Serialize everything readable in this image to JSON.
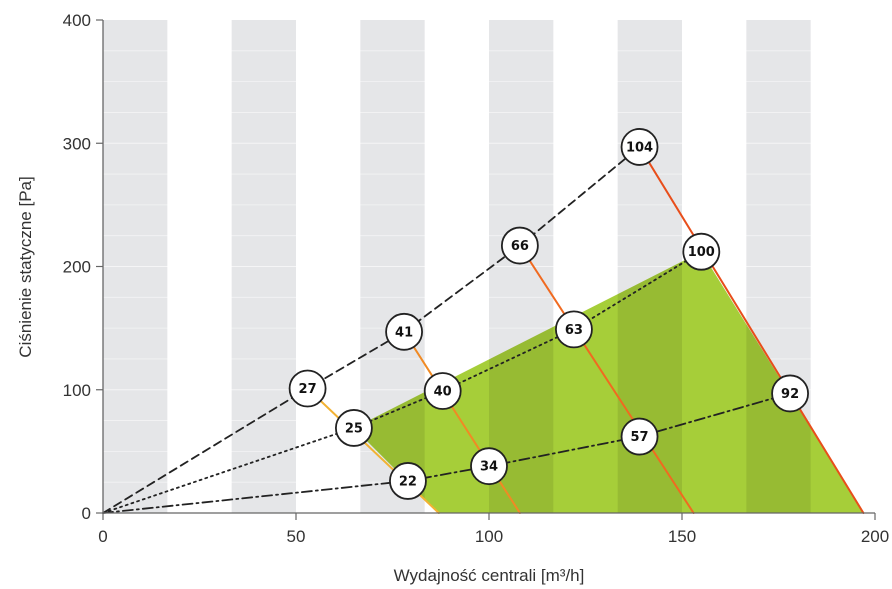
{
  "chart_data": {
    "type": "line",
    "xlabel": "Wydajność centrali [m³/h]",
    "ylabel": "Ciśnienie statyczne [Pa]",
    "xlim": [
      0,
      200
    ],
    "ylim": [
      0,
      400
    ],
    "xticks": [
      0,
      50,
      100,
      150,
      200
    ],
    "yticks": [
      0,
      100,
      200,
      300,
      400
    ],
    "grid": "alternating vertical bands",
    "series": [
      {
        "name": "",
        "style": "dashed",
        "color": "#222222",
        "points": [
          [
            0,
            0
          ],
          [
            53,
            101
          ],
          [
            78,
            147
          ],
          [
            108,
            217
          ],
          [
            139,
            297
          ]
        ]
      },
      {
        "name": "",
        "style": "dotted",
        "color": "#222222",
        "points": [
          [
            0,
            0
          ],
          [
            65,
            69
          ],
          [
            88,
            99
          ],
          [
            122,
            149
          ],
          [
            155,
            212
          ]
        ]
      },
      {
        "name": "",
        "style": "dashdot",
        "color": "#222222",
        "points": [
          [
            0,
            0
          ],
          [
            79,
            26
          ],
          [
            100,
            38
          ],
          [
            139,
            62
          ],
          [
            178,
            97
          ]
        ]
      },
      {
        "name": "",
        "style": "solid",
        "color": "#f2b233",
        "points": [
          [
            53,
            101
          ],
          [
            87,
            0
          ]
        ]
      },
      {
        "name": "",
        "style": "solid",
        "color": "#f08a24",
        "points": [
          [
            78,
            147
          ],
          [
            108,
            0
          ]
        ]
      },
      {
        "name": "",
        "style": "solid",
        "color": "#f06a20",
        "points": [
          [
            108,
            217
          ],
          [
            153,
            0
          ]
        ]
      },
      {
        "name": "",
        "style": "solid",
        "color": "#e84e1b",
        "points": [
          [
            139,
            297
          ],
          [
            197,
            0
          ]
        ]
      }
    ],
    "area": {
      "color": "#a6ce39",
      "points": [
        [
          65,
          69
        ],
        [
          155,
          212
        ],
        [
          197,
          0
        ],
        [
          87,
          0
        ]
      ]
    },
    "labels": [
      {
        "text": "104",
        "x": 139,
        "y": 297
      },
      {
        "text": "66",
        "x": 108,
        "y": 217
      },
      {
        "text": "41",
        "x": 78,
        "y": 147
      },
      {
        "text": "27",
        "x": 53,
        "y": 101
      },
      {
        "text": "100",
        "x": 155,
        "y": 212
      },
      {
        "text": "63",
        "x": 122,
        "y": 149
      },
      {
        "text": "40",
        "x": 88,
        "y": 99
      },
      {
        "text": "25",
        "x": 65,
        "y": 69
      },
      {
        "text": "92",
        "x": 178,
        "y": 97
      },
      {
        "text": "57",
        "x": 139,
        "y": 62
      },
      {
        "text": "34",
        "x": 100,
        "y": 38
      },
      {
        "text": "22",
        "x": 79,
        "y": 26
      }
    ]
  },
  "colors": {
    "band": "#e5e6e8",
    "bubble_fill": "#ffffff",
    "bubble_stroke": "#222222",
    "axis": "#666666"
  }
}
